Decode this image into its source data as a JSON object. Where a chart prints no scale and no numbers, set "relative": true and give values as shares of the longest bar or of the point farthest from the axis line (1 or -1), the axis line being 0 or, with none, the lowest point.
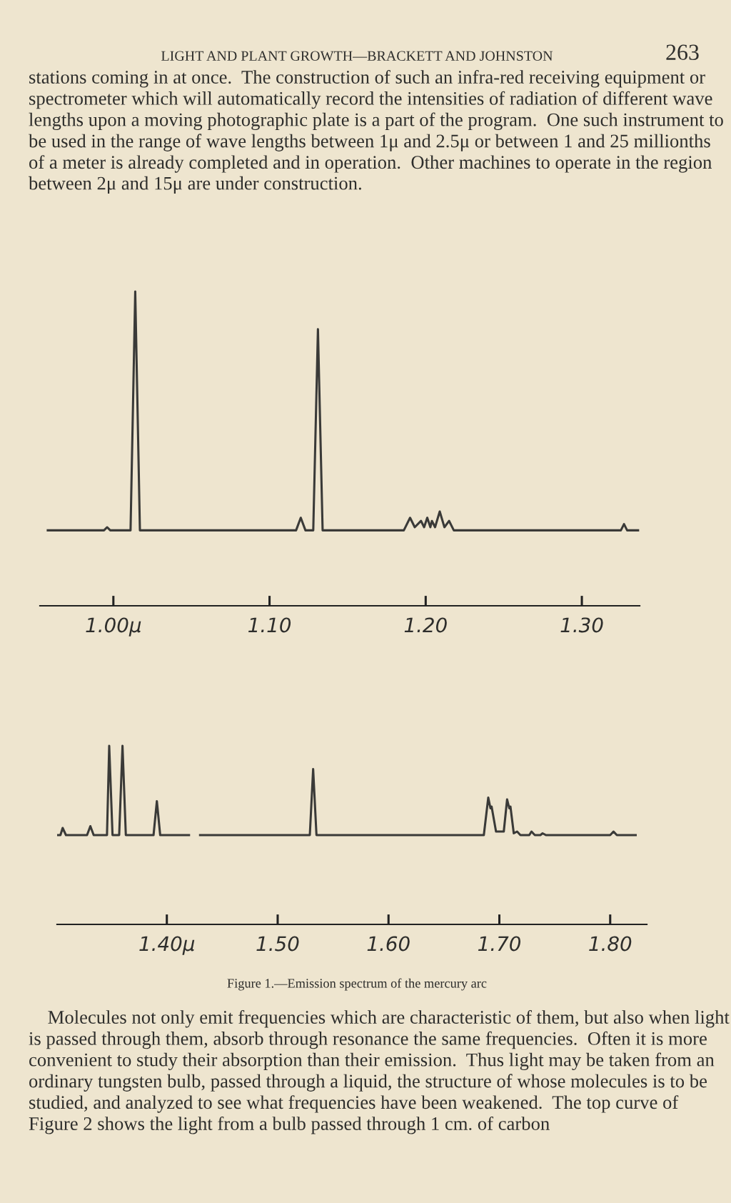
{
  "chart_data": [
    {
      "type": "line",
      "relative": true,
      "tick_labels": "x",
      "xlim": [
        0.953,
        1.337
      ],
      "xticks": [
        {
          "value": 1.0,
          "label": "1.00μ"
        },
        {
          "value": 1.1,
          "label": "1.10"
        },
        {
          "value": 1.2,
          "label": "1.20"
        },
        {
          "value": 1.3,
          "label": "1.30"
        }
      ],
      "annotations": [
        "LIGHT AND PLANT GROWTH—BRACKETT AND JOHNSTON",
        "263",
        "stations coming in at once.  The construction of such an infra-red receiving equipment or spectrometer which will automatically record the intensities of radiation of different wave lengths upon a moving photographic plate is a part of the program.  One such instrument to be used in the range of wave lengths between 1μ and 2.5μ or between 1 and 25 millionths of a meter is already completed and in operation.  Other machines to operate in the region between 2μ and 15μ are under construction."
      ],
      "series": [
        {
          "color": "#3a3a38",
          "x": [
            0.958,
            0.994,
            0.996,
            0.998,
            1.011,
            1.014,
            1.017,
            1.117,
            1.12,
            1.123,
            1.128,
            1.131,
            1.134,
            1.186,
            1.19,
            1.193,
            1.197,
            1.199,
            1.201,
            1.203,
            1.204,
            1.206,
            1.209,
            1.212,
            1.215,
            1.218,
            1.325,
            1.327,
            1.329,
            1.336
          ],
          "values": [
            0.24,
            0.24,
            0.25,
            0.24,
            0.24,
            1.0,
            0.24,
            0.24,
            0.28,
            0.24,
            0.24,
            0.88,
            0.24,
            0.24,
            0.28,
            0.25,
            0.27,
            0.25,
            0.28,
            0.25,
            0.27,
            0.25,
            0.3,
            0.25,
            0.27,
            0.24,
            0.24,
            0.26,
            0.24,
            0.24
          ]
        }
      ]
    },
    {
      "type": "line",
      "relative": true,
      "tick_labels": "x",
      "xlim": [
        1.301,
        1.833
      ],
      "xticks": [
        {
          "value": 1.4,
          "label": "1.40μ"
        },
        {
          "value": 1.5,
          "label": "1.50"
        },
        {
          "value": 1.6,
          "label": "1.60"
        },
        {
          "value": 1.7,
          "label": "1.70"
        },
        {
          "value": 1.8,
          "label": "1.80"
        }
      ],
      "annotations": [
        "Figure 1.—Emission spectrum of the mercury arc",
        "Molecules not only emit frequencies which are characteristic of them, but also when light is passed through them, absorb through resonance the same frequencies.  Often it is more convenient to study their absorption than their emission.  Thus light may be taken from an ordinary tungsten bulb, passed through a liquid, the structure of whose molecules is to be studied, and analyzed to see what frequencies have been weakened.  The top curve of Figure 2 shows the light from a bulb passed through 1 cm. of carbon"
      ],
      "series": [
        {
          "color": "#3a3a38",
          "x": [
            1.301,
            1.304,
            1.306,
            1.309,
            1.328,
            1.331,
            1.334,
            1.346,
            1.348,
            1.351,
            1.357,
            1.36,
            1.363,
            1.388,
            1.391,
            1.394,
            1.42,
            1.423,
            1.43,
            1.529,
            1.532,
            1.535,
            1.686,
            1.69,
            1.692,
            1.693,
            1.697,
            1.704,
            1.707,
            1.709,
            1.71,
            1.713,
            1.716,
            1.719,
            1.727,
            1.729,
            1.732,
            1.737,
            1.739,
            1.742,
            1.8,
            1.803,
            1.806,
            1.823
          ],
          "values": [
            0.5,
            0.5,
            0.54,
            0.5,
            0.5,
            0.55,
            0.5,
            0.5,
            1.0,
            0.5,
            0.5,
            1.0,
            0.5,
            0.5,
            0.69,
            0.5,
            0.5,
            null,
            0.5,
            0.5,
            0.87,
            0.5,
            0.5,
            0.71,
            0.65,
            0.66,
            0.52,
            0.52,
            0.7,
            0.65,
            0.66,
            0.51,
            0.52,
            0.5,
            0.5,
            0.52,
            0.5,
            0.5,
            0.51,
            0.5,
            0.5,
            0.52,
            0.5,
            0.5
          ]
        }
      ]
    }
  ]
}
